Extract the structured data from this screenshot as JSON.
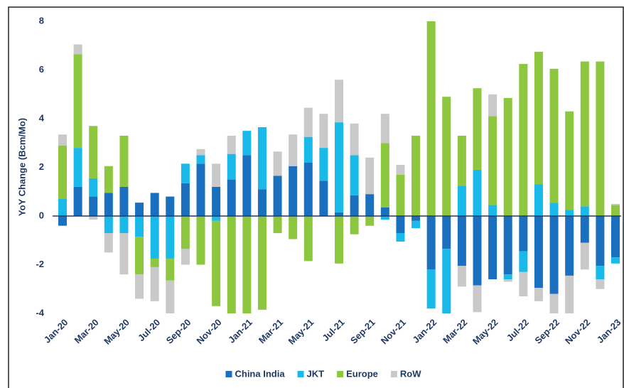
{
  "chart_data": {
    "type": "bar",
    "stacked": true,
    "y_label": "YoY Change (Bcm/Mo)",
    "categories": [
      "Jan-20",
      null,
      "Mar-20",
      null,
      "May-20",
      null,
      "Jul-20",
      null,
      "Sep-20",
      null,
      "Nov-20",
      null,
      "Jan-21",
      null,
      "Mar-21",
      null,
      "May-21",
      null,
      "Jul-21",
      null,
      "Sep-21",
      null,
      "Nov-21",
      null,
      "Jan-22",
      null,
      "Mar-22",
      null,
      "May-22",
      null,
      "Jul-22",
      null,
      "Sep-22",
      null,
      "Nov-22",
      null,
      "Jan-23"
    ],
    "series": [
      {
        "name": "China India",
        "color": "#1a6fbe",
        "values": [
          -0.4,
          1.2,
          0.8,
          0.95,
          1.2,
          0.55,
          0.95,
          0.8,
          1.35,
          2.15,
          1.2,
          1.5,
          2.5,
          1.1,
          1.65,
          2.05,
          2.2,
          1.45,
          0.15,
          0.85,
          0.9,
          0.35,
          -0.7,
          -0.2,
          -2.2,
          -1.35,
          -2.05,
          -2.85,
          -2.6,
          -2.4,
          -1.45,
          -2.95,
          -3.2,
          -2.45,
          -1.1,
          -2.05,
          -1.7
        ]
      },
      {
        "name": "JKT",
        "color": "#19b9ea",
        "values": [
          0.7,
          1.6,
          0.75,
          -0.7,
          -0.7,
          -0.85,
          -1.75,
          -1.75,
          0.8,
          0.35,
          -0.2,
          1.05,
          1.0,
          2.55,
          0,
          0,
          1.05,
          1.35,
          3.7,
          1.65,
          0,
          -0.15,
          -0.35,
          -0.3,
          -1.6,
          -2.9,
          1.25,
          1.9,
          0.45,
          -0.2,
          -0.85,
          1.3,
          0.55,
          0.25,
          0.4,
          -0.55,
          -0.25
        ]
      },
      {
        "name": "Europe",
        "color": "#8dc63f",
        "values": [
          2.2,
          3.85,
          2.15,
          1.1,
          2.1,
          -1.55,
          -0.35,
          -0.9,
          -1.35,
          -2.0,
          -3.5,
          -4.5,
          -4.5,
          -3.85,
          -0.7,
          -0.95,
          -1.85,
          0,
          -1.95,
          -0.75,
          -0.4,
          2.65,
          1.7,
          3.3,
          8.3,
          4.9,
          2.05,
          3.35,
          3.65,
          4.85,
          6.25,
          5.45,
          5.5,
          4.05,
          5.95,
          6.35,
          0.45
        ]
      },
      {
        "name": "RoW",
        "color": "#c9c9c9",
        "values": [
          0.45,
          0.4,
          -0.15,
          -0.8,
          -1.7,
          -1.0,
          -1.4,
          -1.35,
          -0.65,
          0.25,
          0.95,
          0.75,
          0,
          0,
          1.0,
          1.3,
          1.2,
          1.4,
          1.75,
          1.3,
          1.5,
          1.2,
          0.4,
          0,
          0,
          0,
          -0.85,
          -1.1,
          0.9,
          -0.1,
          -1.0,
          -0.55,
          -1.0,
          -1.6,
          -1.1,
          -0.4,
          0.05
        ]
      }
    ],
    "ylim": [
      -4,
      8
    ],
    "yticks": [
      -4,
      -2,
      0,
      2,
      4,
      6,
      8
    ],
    "grid": false,
    "legend": "bottom"
  }
}
